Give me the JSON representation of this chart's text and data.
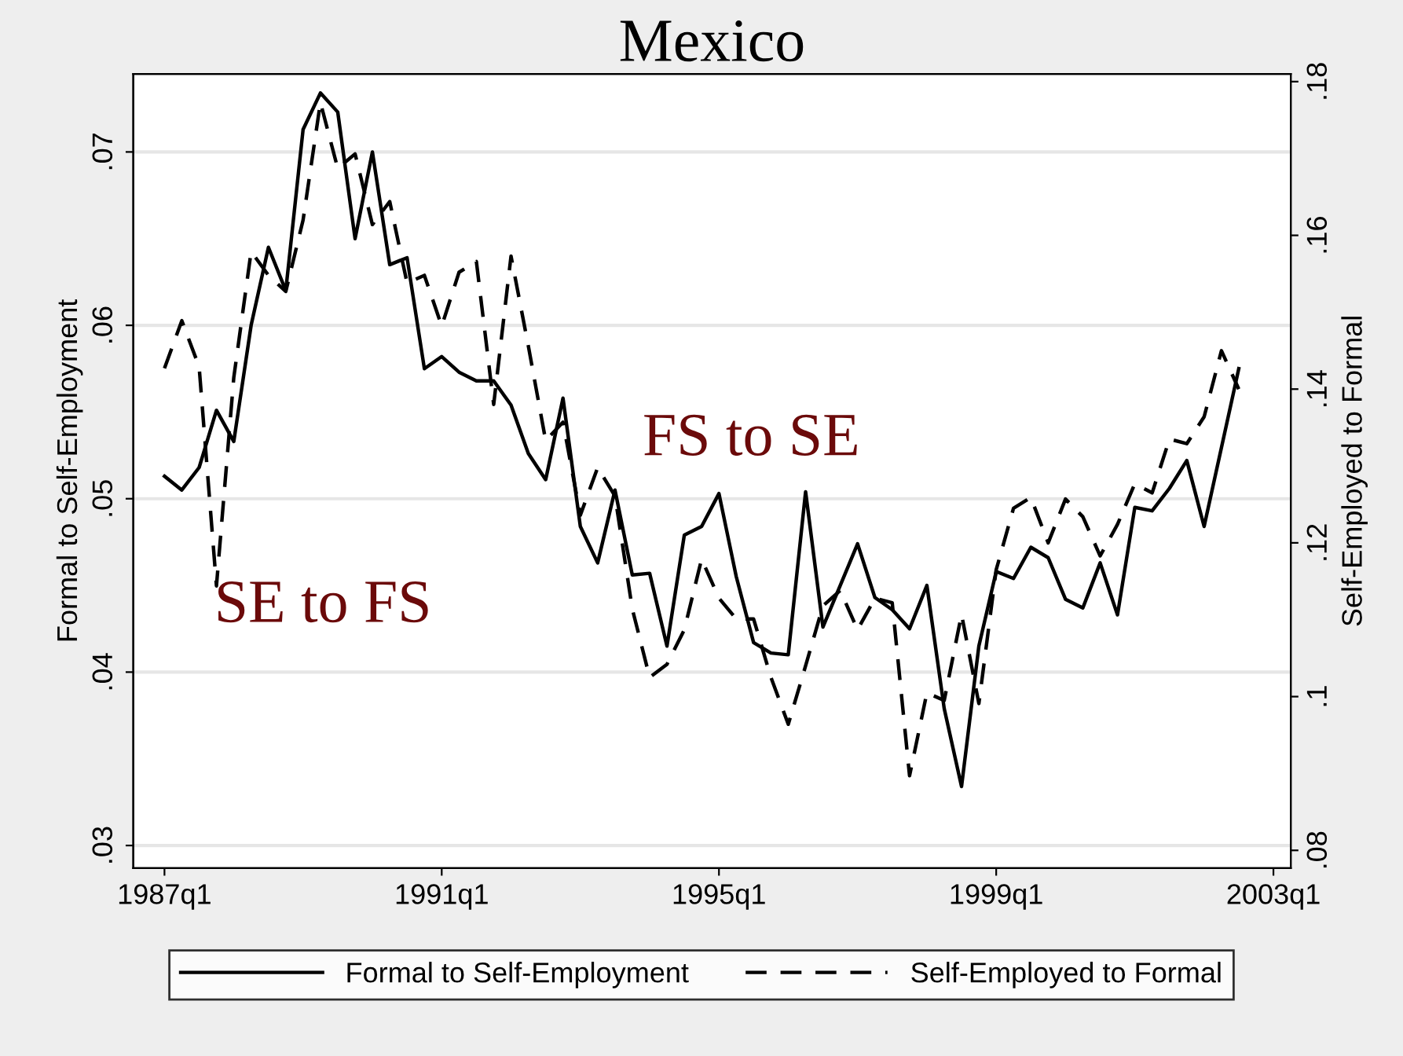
{
  "chart_data": {
    "type": "line",
    "title": "Mexico",
    "ylabel": "Formal to Self-Employment",
    "y2label": "Self-Employed to Formal",
    "annotations": [
      "SE to FS",
      "FS to SE"
    ],
    "series": [
      {
        "name": "Formal to Self-Employment",
        "color": "#000000",
        "line_style": "solid",
        "values": [
          0.0513,
          0.0505,
          0.0518,
          0.0551,
          0.0533,
          0.06,
          0.0645,
          0.062,
          0.0713,
          0.0734,
          0.0723,
          0.065,
          0.07,
          0.0635,
          0.0639,
          0.0575,
          0.0582,
          0.0573,
          0.0568,
          0.0568,
          0.0554,
          0.0526,
          0.0511,
          0.0558,
          0.0484,
          0.0463,
          0.0505,
          0.0456,
          0.0457,
          0.0415,
          0.0479,
          0.0484,
          0.0503,
          0.0455,
          0.0417,
          0.0411,
          0.041,
          0.0504,
          0.0426,
          0.045,
          0.0474,
          0.0443,
          0.0436,
          0.0425,
          0.045,
          0.0379,
          0.0334,
          0.0415,
          0.0458,
          0.0454,
          0.0472,
          0.0466,
          0.0442,
          0.0437,
          0.0463,
          0.0433,
          0.0495,
          0.0493,
          0.0506,
          0.0522,
          0.0484,
          null,
          0.0575,
          null,
          null
        ]
      },
      {
        "name": "Self-Employed to Formal",
        "color": "#000000",
        "line_style": "dashed",
        "axis": "y2",
        "values": [
          0.1427,
          0.1489,
          0.1429,
          0.1144,
          0.1415,
          0.1579,
          0.1548,
          0.1527,
          0.162,
          0.1773,
          0.1687,
          0.1706,
          0.1614,
          0.1644,
          0.1538,
          0.1548,
          0.1482,
          0.1552,
          0.1566,
          0.138,
          0.1573,
          0.1456,
          0.1333,
          0.1357,
          0.1236,
          0.1298,
          0.1261,
          0.1114,
          0.1025,
          0.1042,
          0.1087,
          0.1179,
          0.1128,
          0.1101,
          0.1101,
          0.1025,
          0.0964,
          0.104,
          0.1118,
          0.1138,
          0.1087,
          0.1128,
          0.1122,
          0.0897,
          0.1005,
          0.0995,
          0.1107,
          0.0991,
          0.1165,
          0.1245,
          0.1259,
          0.12,
          0.1257,
          0.1234,
          0.1183,
          0.1224,
          0.1277,
          0.1265,
          0.1335,
          0.1329,
          0.1364,
          0.145,
          0.14,
          null,
          null
        ]
      }
    ],
    "categories": [
      "1987q1",
      null,
      null,
      null,
      null,
      null,
      null,
      null,
      null,
      null,
      null,
      null,
      null,
      null,
      null,
      null,
      "1991q1",
      null,
      null,
      null,
      null,
      null,
      null,
      null,
      null,
      null,
      null,
      null,
      null,
      null,
      null,
      null,
      "1995q1",
      null,
      null,
      null,
      null,
      null,
      null,
      null,
      null,
      null,
      null,
      null,
      null,
      null,
      null,
      null,
      "1999q1",
      null,
      null,
      null,
      null,
      null,
      null,
      null,
      null,
      null,
      null,
      null,
      null,
      null,
      null,
      null,
      "2003q1"
    ],
    "ylim": [
      0.0287,
      0.0745
    ],
    "yticks": [
      {
        "value": 0.03,
        "label": ".03"
      },
      {
        "value": 0.04,
        "label": ".04"
      },
      {
        "value": 0.05,
        "label": ".05"
      },
      {
        "value": 0.06,
        "label": ".06"
      },
      {
        "value": 0.07,
        "label": ".07"
      }
    ],
    "y2lim": [
      0.0777,
      0.181
    ],
    "y2ticks": [
      {
        "value": 0.08,
        "label": ".08"
      },
      {
        "value": 0.1,
        "label": ".1"
      },
      {
        "value": 0.12,
        "label": ".12"
      },
      {
        "value": 0.14,
        "label": ".14"
      },
      {
        "value": 0.16,
        "label": ".16"
      },
      {
        "value": 0.18,
        "label": ".18"
      }
    ],
    "grid": "y",
    "legend": "bottom"
  }
}
